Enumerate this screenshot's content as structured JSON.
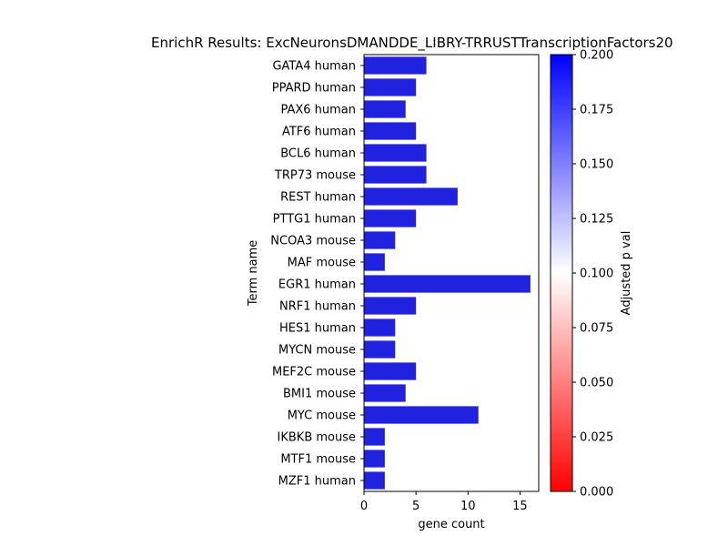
{
  "chart_data": {
    "type": "bar",
    "orientation": "horizontal",
    "title": "EnrichR Results: ExcNeuronsDMANDDE_LIBRY-TRRUSTTranscriptionFactors20",
    "xlabel": "gene count",
    "ylabel": "Term name",
    "xlim": [
      0,
      16.8
    ],
    "x_ticks": [
      "0",
      "5",
      "10",
      "15"
    ],
    "x_tick_values": [
      0,
      5,
      10,
      15
    ],
    "categories": [
      "GATA4 human",
      "PPARD human",
      "PAX6 human",
      "ATF6 human",
      "BCL6 human",
      "TRP73 mouse",
      "REST human",
      "PTTG1 human",
      "NCOA3 mouse",
      "MAF mouse",
      "EGR1 human",
      "NRF1 human",
      "HES1 human",
      "MYCN mouse",
      "MEF2C mouse",
      "BMI1 mouse",
      "MYC mouse",
      "IKBKB mouse",
      "MTF1 mouse",
      "MZF1 human"
    ],
    "values": [
      6,
      5,
      4,
      5,
      6,
      6,
      9,
      5,
      3,
      2,
      16,
      5,
      3,
      3,
      5,
      4,
      11,
      2,
      2,
      2
    ],
    "bar_color": "#2121e0",
    "colorbar": {
      "label": "Adjusted p val",
      "range": [
        0,
        0.2
      ],
      "ticks": [
        "0.000",
        "0.025",
        "0.050",
        "0.075",
        "0.100",
        "0.125",
        "0.150",
        "0.175",
        "0.200"
      ],
      "tick_values": [
        0,
        0.025,
        0.05,
        0.075,
        0.1,
        0.125,
        0.15,
        0.175,
        0.2
      ],
      "colors": [
        "#ff0000",
        "#ffffff",
        "#0000ff"
      ]
    },
    "grid": false,
    "legend": "none"
  }
}
